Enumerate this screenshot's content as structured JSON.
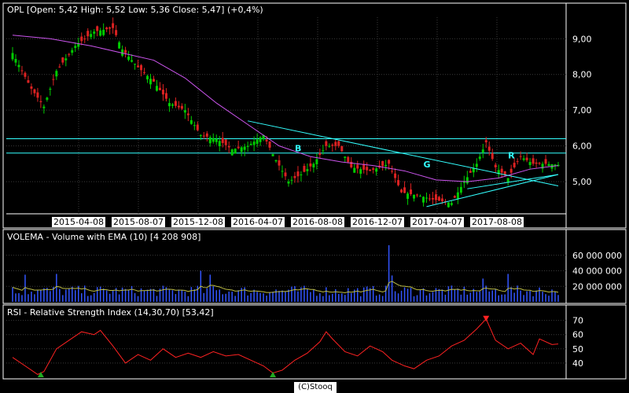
{
  "chart_data": {
    "type": "candlestick",
    "colors": {
      "background": "#000000",
      "up": "#00cc00",
      "down": "#dd2222",
      "ema": "#cc55ee",
      "trend": "#33ffff",
      "grid": "#3a3a3a",
      "volume": "#3355ff",
      "volume_ema": "#bbbb44",
      "rsi": "#ff2222",
      "oversold_marker": "#22aa22",
      "overbought_marker": "#ff2222"
    },
    "price_panel": {
      "header": "OPL [Open: 5,42  High: 5,52  Low: 5,36  Close: 5,47] (+0,4%)",
      "y_ticks": [
        "9,00",
        "8,00",
        "7,00",
        "6,00",
        "5,00"
      ],
      "y_tick_values": [
        9,
        8,
        7,
        6,
        5
      ],
      "ylim": [
        4.1,
        9.6
      ],
      "x_labels": [
        "2015-04-08",
        "2015-08-07",
        "2015-12-08",
        "2016-04-07",
        "2016-08-08",
        "2016-12-07",
        "2017-04-07",
        "2017-08-08"
      ],
      "n_bars": 175,
      "close_path": [
        [
          0,
          8.6
        ],
        [
          6,
          7.6
        ],
        [
          10,
          7.1
        ],
        [
          14,
          8.1
        ],
        [
          20,
          8.8
        ],
        [
          26,
          9.2
        ],
        [
          32,
          9.3
        ],
        [
          35,
          8.7
        ],
        [
          40,
          8.2
        ],
        [
          45,
          7.8
        ],
        [
          50,
          7.2
        ],
        [
          55,
          7.0
        ],
        [
          60,
          6.3
        ],
        [
          65,
          6.2
        ],
        [
          70,
          5.9
        ],
        [
          75,
          6.0
        ],
        [
          80,
          6.3
        ],
        [
          84,
          5.6
        ],
        [
          88,
          5.0
        ],
        [
          92,
          5.2
        ],
        [
          96,
          5.5
        ],
        [
          100,
          6.0
        ],
        [
          104,
          6.0
        ],
        [
          108,
          5.4
        ],
        [
          114,
          5.3
        ],
        [
          120,
          5.5
        ],
        [
          124,
          4.7
        ],
        [
          130,
          4.6
        ],
        [
          134,
          4.5
        ],
        [
          140,
          4.4
        ],
        [
          144,
          5.0
        ],
        [
          148,
          5.5
        ],
        [
          151,
          6.1
        ],
        [
          154,
          5.4
        ],
        [
          158,
          5.1
        ],
        [
          162,
          5.7
        ],
        [
          166,
          5.5
        ],
        [
          170,
          5.5
        ],
        [
          174,
          5.47
        ]
      ],
      "ema_path": [
        [
          0,
          9.1
        ],
        [
          12,
          9.0
        ],
        [
          25,
          8.8
        ],
        [
          35,
          8.6
        ],
        [
          45,
          8.4
        ],
        [
          55,
          7.9
        ],
        [
          65,
          7.2
        ],
        [
          75,
          6.6
        ],
        [
          85,
          6.0
        ],
        [
          95,
          5.7
        ],
        [
          105,
          5.55
        ],
        [
          115,
          5.45
        ],
        [
          125,
          5.3
        ],
        [
          135,
          5.05
        ],
        [
          145,
          5.0
        ],
        [
          155,
          5.1
        ],
        [
          165,
          5.35
        ],
        [
          174,
          5.45
        ]
      ],
      "trendlines": [
        {
          "from": [
            75,
            6.7
          ],
          "to": [
            174,
            4.88
          ]
        },
        {
          "from": [
            132,
            4.3
          ],
          "to": [
            174,
            5.2
          ]
        },
        {
          "from": [
            145,
            4.8
          ],
          "to": [
            174,
            5.2
          ]
        }
      ],
      "hlines": [
        6.2,
        5.8
      ],
      "annotations": [
        {
          "text": "B",
          "x": 90,
          "y": 5.85
        },
        {
          "text": "G",
          "x": 131,
          "y": 5.4
        },
        {
          "text": "R",
          "x": 158,
          "y": 5.65
        }
      ]
    },
    "volume_panel": {
      "header": "VOLEMA - Volume with EMA (10) [4 208 908]",
      "y_ticks": [
        "60 000 000",
        "40 000 000",
        "20 000 000"
      ],
      "y_tick_values": [
        60000000,
        40000000,
        20000000
      ],
      "ylim": [
        0,
        75000000
      ],
      "spikes": [
        [
          4,
          35000000
        ],
        [
          14,
          36000000
        ],
        [
          60,
          40000000
        ],
        [
          63,
          35000000
        ],
        [
          120,
          73000000
        ],
        [
          121,
          34000000
        ],
        [
          150,
          30000000
        ],
        [
          158,
          36000000
        ]
      ]
    },
    "rsi_panel": {
      "header": "RSI - Relative Strength Index (14,30,70) [53,42]",
      "y_ticks": [
        "70",
        "60",
        "50",
        "40"
      ],
      "y_tick_values": [
        70,
        60,
        50,
        40
      ],
      "ylim": [
        30,
        72
      ],
      "rsi_path": [
        [
          0,
          44
        ],
        [
          4,
          38
        ],
        [
          8,
          32
        ],
        [
          10,
          34
        ],
        [
          14,
          50
        ],
        [
          18,
          56
        ],
        [
          22,
          62
        ],
        [
          26,
          60
        ],
        [
          28,
          63
        ],
        [
          32,
          52
        ],
        [
          36,
          40
        ],
        [
          40,
          46
        ],
        [
          44,
          42
        ],
        [
          48,
          50
        ],
        [
          52,
          44
        ],
        [
          56,
          47
        ],
        [
          60,
          44
        ],
        [
          64,
          48
        ],
        [
          68,
          45
        ],
        [
          72,
          46
        ],
        [
          76,
          42
        ],
        [
          80,
          38
        ],
        [
          83,
          33
        ],
        [
          86,
          35
        ],
        [
          90,
          42
        ],
        [
          94,
          47
        ],
        [
          98,
          55
        ],
        [
          100,
          62
        ],
        [
          102,
          57
        ],
        [
          106,
          48
        ],
        [
          110,
          45
        ],
        [
          114,
          52
        ],
        [
          118,
          48
        ],
        [
          121,
          42
        ],
        [
          125,
          38
        ],
        [
          128,
          36
        ],
        [
          132,
          42
        ],
        [
          136,
          45
        ],
        [
          140,
          52
        ],
        [
          144,
          56
        ],
        [
          148,
          64
        ],
        [
          151,
          71
        ],
        [
          154,
          56
        ],
        [
          158,
          50
        ],
        [
          162,
          54
        ],
        [
          166,
          46
        ],
        [
          168,
          57
        ],
        [
          172,
          53
        ],
        [
          174,
          53.42
        ]
      ],
      "markers": [
        {
          "x": 9,
          "kind": "oversold"
        },
        {
          "x": 83,
          "kind": "oversold"
        },
        {
          "x": 151,
          "kind": "overbought"
        }
      ]
    }
  },
  "credit": "(C)Stooq"
}
